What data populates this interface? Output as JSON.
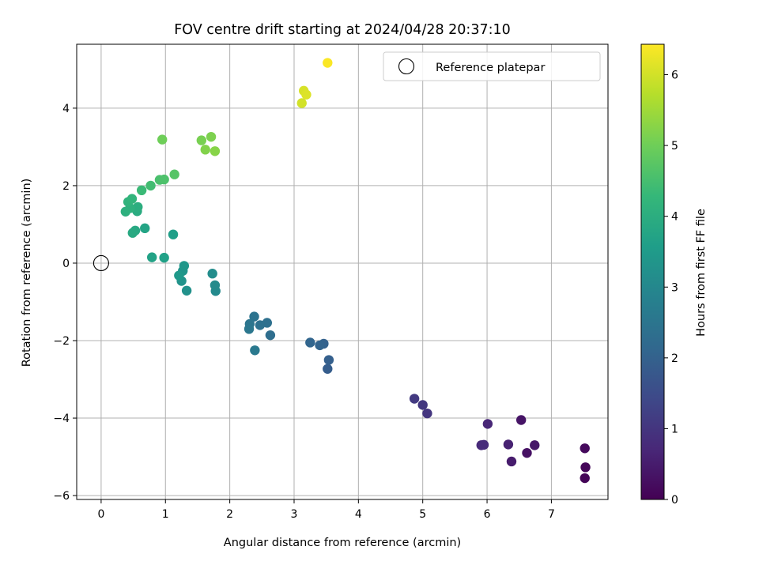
{
  "chart_data": {
    "type": "scatter",
    "title": "FOV centre drift starting at 2024/04/28 20:37:10",
    "xlabel": "Angular distance from reference (arcmin)",
    "ylabel": "Rotation from reference (arcmin)",
    "xlim": [
      -0.38,
      7.88
    ],
    "ylim": [
      -6.1,
      5.65
    ],
    "xticks": [
      0,
      1,
      2,
      3,
      4,
      5,
      6,
      7
    ],
    "yticks": [
      -6,
      -4,
      -2,
      0,
      2,
      4
    ],
    "xtick_labels": [
      "0",
      "1",
      "2",
      "3",
      "4",
      "5",
      "6",
      "7"
    ],
    "ytick_labels": [
      "−6",
      "−4",
      "−2",
      "0",
      "2",
      "4"
    ],
    "grid": true,
    "legend": {
      "location": "top-right",
      "entries": [
        "Reference platepar"
      ]
    },
    "reference_point": {
      "x": 0,
      "y": 0
    },
    "colorbar": {
      "label": "Hours from first FF file",
      "range": [
        0,
        6.43
      ],
      "ticks": [
        0,
        1,
        2,
        3,
        4,
        5,
        6
      ],
      "tick_labels": [
        "0",
        "1",
        "2",
        "3",
        "4",
        "5",
        "6"
      ],
      "colormap": "viridis",
      "stops": [
        "#440154",
        "#482878",
        "#3e4989",
        "#31688e",
        "#26828e",
        "#1f9e89",
        "#35b779",
        "#6ece58",
        "#b5de2b",
        "#fde725"
      ]
    },
    "points": [
      {
        "x": 7.52,
        "y": -5.55,
        "hours": 0.05
      },
      {
        "x": 7.53,
        "y": -5.27,
        "hours": 0.1
      },
      {
        "x": 7.52,
        "y": -4.78,
        "hours": 0.15
      },
      {
        "x": 6.62,
        "y": -4.9,
        "hours": 0.3
      },
      {
        "x": 6.53,
        "y": -4.05,
        "hours": 0.35
      },
      {
        "x": 6.74,
        "y": -4.7,
        "hours": 0.4
      },
      {
        "x": 6.38,
        "y": -5.12,
        "hours": 0.5
      },
      {
        "x": 6.33,
        "y": -4.68,
        "hours": 0.6
      },
      {
        "x": 6.01,
        "y": -4.15,
        "hours": 0.7
      },
      {
        "x": 5.91,
        "y": -4.7,
        "hours": 0.75
      },
      {
        "x": 5.95,
        "y": -4.69,
        "hours": 0.8
      },
      {
        "x": 5.07,
        "y": -3.88,
        "hours": 1.0
      },
      {
        "x": 5.0,
        "y": -3.66,
        "hours": 1.05
      },
      {
        "x": 4.87,
        "y": -3.5,
        "hours": 1.1
      },
      {
        "x": 3.52,
        "y": -2.73,
        "hours": 1.9
      },
      {
        "x": 3.54,
        "y": -2.5,
        "hours": 1.95
      },
      {
        "x": 3.46,
        "y": -2.08,
        "hours": 2.0
      },
      {
        "x": 3.4,
        "y": -2.12,
        "hours": 2.05
      },
      {
        "x": 3.25,
        "y": -2.05,
        "hours": 2.1
      },
      {
        "x": 2.63,
        "y": -1.86,
        "hours": 2.3
      },
      {
        "x": 2.58,
        "y": -1.54,
        "hours": 2.35
      },
      {
        "x": 2.47,
        "y": -1.6,
        "hours": 2.4
      },
      {
        "x": 2.38,
        "y": -1.38,
        "hours": 2.45
      },
      {
        "x": 2.31,
        "y": -1.57,
        "hours": 2.5
      },
      {
        "x": 2.3,
        "y": -1.7,
        "hours": 2.55
      },
      {
        "x": 2.39,
        "y": -2.25,
        "hours": 2.6
      },
      {
        "x": 1.78,
        "y": -0.72,
        "hours": 3.05
      },
      {
        "x": 1.77,
        "y": -0.57,
        "hours": 3.1
      },
      {
        "x": 1.73,
        "y": -0.27,
        "hours": 3.15
      },
      {
        "x": 1.33,
        "y": -0.71,
        "hours": 3.25
      },
      {
        "x": 1.25,
        "y": -0.46,
        "hours": 3.3
      },
      {
        "x": 1.27,
        "y": -0.2,
        "hours": 3.35
      },
      {
        "x": 1.29,
        "y": -0.07,
        "hours": 3.4
      },
      {
        "x": 1.21,
        "y": -0.32,
        "hours": 3.45
      },
      {
        "x": 1.12,
        "y": 0.74,
        "hours": 3.6
      },
      {
        "x": 0.98,
        "y": 0.14,
        "hours": 3.65
      },
      {
        "x": 0.79,
        "y": 0.15,
        "hours": 3.7
      },
      {
        "x": 0.68,
        "y": 0.9,
        "hours": 3.75
      },
      {
        "x": 0.53,
        "y": 0.84,
        "hours": 3.85
      },
      {
        "x": 0.49,
        "y": 0.78,
        "hours": 3.9
      },
      {
        "x": 0.56,
        "y": 1.34,
        "hours": 3.95
      },
      {
        "x": 0.57,
        "y": 1.45,
        "hours": 4.0
      },
      {
        "x": 0.38,
        "y": 1.33,
        "hours": 4.05
      },
      {
        "x": 0.45,
        "y": 1.42,
        "hours": 4.1
      },
      {
        "x": 0.42,
        "y": 1.58,
        "hours": 4.15
      },
      {
        "x": 0.48,
        "y": 1.66,
        "hours": 4.2
      },
      {
        "x": 0.63,
        "y": 1.88,
        "hours": 4.35
      },
      {
        "x": 0.77,
        "y": 2.0,
        "hours": 4.45
      },
      {
        "x": 0.91,
        "y": 2.15,
        "hours": 4.55
      },
      {
        "x": 0.98,
        "y": 2.16,
        "hours": 4.6
      },
      {
        "x": 1.14,
        "y": 2.29,
        "hours": 4.7
      },
      {
        "x": 0.95,
        "y": 3.19,
        "hours": 5.0
      },
      {
        "x": 1.56,
        "y": 3.17,
        "hours": 5.1
      },
      {
        "x": 1.71,
        "y": 3.26,
        "hours": 5.15
      },
      {
        "x": 1.62,
        "y": 2.93,
        "hours": 5.2
      },
      {
        "x": 1.77,
        "y": 2.89,
        "hours": 5.25
      },
      {
        "x": 3.12,
        "y": 4.13,
        "hours": 6.0
      },
      {
        "x": 3.15,
        "y": 4.45,
        "hours": 6.05
      },
      {
        "x": 3.19,
        "y": 4.35,
        "hours": 6.1
      },
      {
        "x": 3.52,
        "y": 5.17,
        "hours": 6.4
      }
    ]
  }
}
